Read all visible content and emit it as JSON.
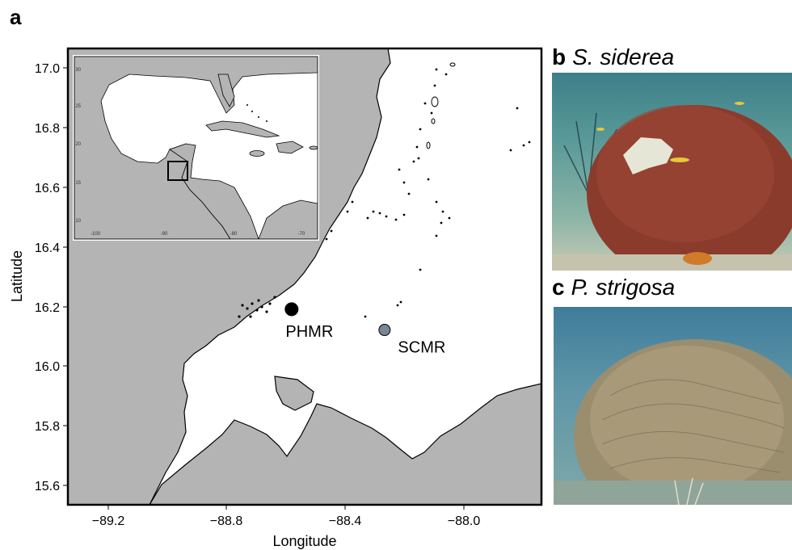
{
  "panel_a": {
    "letter": "a",
    "xlabel": "Longitude",
    "ylabel": "Latitude",
    "xticks": [
      "−89.2",
      "−88.8",
      "−88.4",
      "−88.0"
    ],
    "yticks": [
      "17.0",
      "16.8",
      "16.6",
      "16.4",
      "16.2",
      "16.0",
      "15.8",
      "15.6"
    ],
    "sites": [
      {
        "name": "PHMR",
        "lon": -88.58,
        "lat": 16.19,
        "color": "#000000"
      },
      {
        "name": "SCMR",
        "lon": -88.26,
        "lat": 16.12,
        "color": "#7a8597"
      }
    ],
    "inset": {
      "xticks": [
        "-100",
        "-90",
        "-80",
        "-70"
      ],
      "yticks": [
        "30",
        "25",
        "20",
        "15",
        "10"
      ]
    },
    "colors": {
      "land": "#b4b4b4",
      "sea": "#ffffff",
      "frame": "#000000"
    }
  },
  "panel_b": {
    "letter": "b",
    "species": "S. siderea"
  },
  "panel_c": {
    "letter": "c",
    "species": "P. strigosa"
  },
  "chart_data": {
    "type": "scatter",
    "xlabel": "Longitude",
    "ylabel": "Latitude",
    "xlim": [
      -89.35,
      -87.72
    ],
    "ylim": [
      15.53,
      17.07
    ],
    "points": [
      {
        "label": "PHMR",
        "x": -88.58,
        "y": 16.19
      },
      {
        "label": "SCMR",
        "x": -88.26,
        "y": 16.12
      }
    ]
  }
}
